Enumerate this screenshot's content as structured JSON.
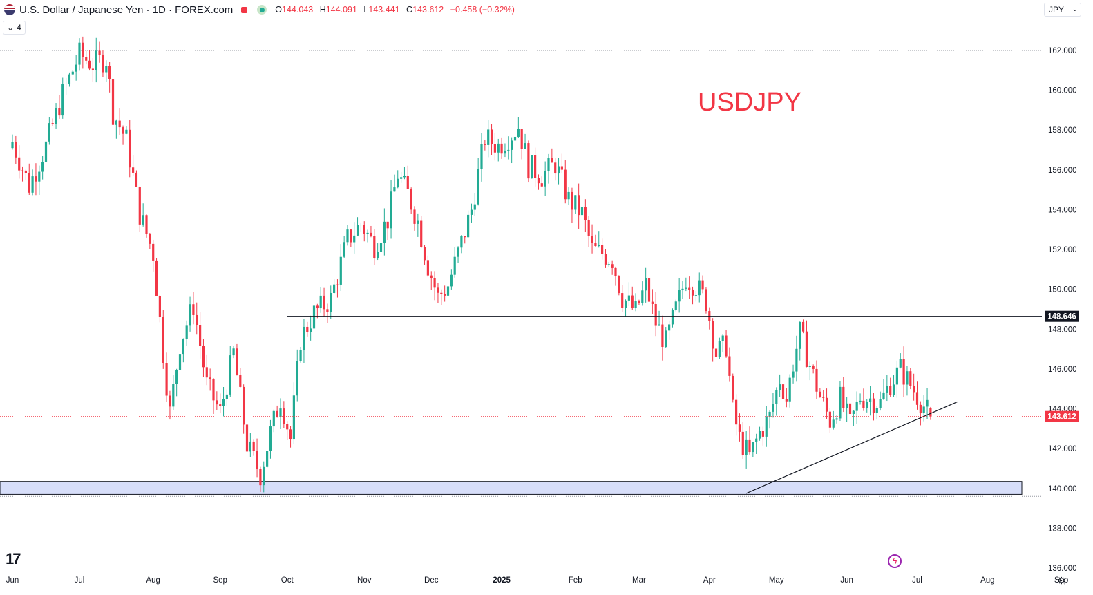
{
  "header": {
    "symbol_title": "U.S. Dollar / Japanese Yen · 1D · FOREX.com",
    "ohlc": [
      {
        "key": "O",
        "value": "144.043"
      },
      {
        "key": "H",
        "value": "144.091"
      },
      {
        "key": "L",
        "value": "143.441"
      },
      {
        "key": "C",
        "value": "143.612"
      },
      {
        "key": "",
        "value": "−0.458 (−0.32%)"
      }
    ],
    "indicator_count": "4",
    "currency": "JPY"
  },
  "colors": {
    "up": "#22ab94",
    "down": "#f23645",
    "annotation": "#f23645",
    "support_zone_fill": "#d7def9",
    "grid": "#e0e3eb"
  },
  "icons": [
    "us-flag-icon",
    "market-status-icon",
    "live-dot-icon",
    "chevron-down-icon",
    "tradingview-logo-icon",
    "flash-icon",
    "gear-icon"
  ],
  "chart_data": {
    "type": "candlestick",
    "timeframe": "1D",
    "annotation": "USDJPY",
    "y_ticks": [
      162,
      160,
      158,
      156,
      154,
      152,
      150,
      148,
      146,
      144,
      142,
      140,
      138,
      136
    ],
    "y_tick_labels": [
      "162.000",
      "160.000",
      "158.000",
      "156.000",
      "154.000",
      "152.000",
      "150.000",
      "148.000",
      "146.000",
      "144.000",
      "142.000",
      "140.000",
      "138.000",
      "136.000"
    ],
    "ylim": [
      135.8,
      164.5
    ],
    "x_tick_labels": [
      "Jun",
      "Jul",
      "Aug",
      "Sep",
      "Oct",
      "Nov",
      "Dec",
      "2025",
      "Feb",
      "Mar",
      "Apr",
      "May",
      "Jun",
      "Jul",
      "Aug",
      "Sep"
    ],
    "x_tick_day_index": [
      0,
      20,
      42,
      62,
      82,
      105,
      125,
      146,
      168,
      187,
      208,
      228,
      249,
      270,
      291,
      313
    ],
    "resistance_level": 148.646,
    "resistance_label": "148.646",
    "resistance_start_day": 82,
    "last_price": 143.612,
    "last_price_label": "143.612",
    "support_zone": {
      "from": 139.7,
      "to": 140.35
    },
    "trendline": [
      {
        "day": 219,
        "price": 139.75
      },
      {
        "day": 282,
        "price": 144.35
      }
    ],
    "last_candle_day": 274,
    "price_path": [
      {
        "day": 0,
        "close": 157.4
      },
      {
        "day": 5,
        "close": 155.2
      },
      {
        "day": 10,
        "close": 157.2
      },
      {
        "day": 15,
        "close": 159.8
      },
      {
        "day": 20,
        "close": 161.8
      },
      {
        "day": 24,
        "close": 161.3
      },
      {
        "day": 28,
        "close": 161.6
      },
      {
        "day": 30,
        "close": 158.9
      },
      {
        "day": 34,
        "close": 157.5
      },
      {
        "day": 38,
        "close": 153.8
      },
      {
        "day": 42,
        "close": 151.8
      },
      {
        "day": 45,
        "close": 146.8
      },
      {
        "day": 47,
        "close": 143.8
      },
      {
        "day": 50,
        "close": 147.3
      },
      {
        "day": 54,
        "close": 149.2
      },
      {
        "day": 58,
        "close": 145.2
      },
      {
        "day": 62,
        "close": 143.8
      },
      {
        "day": 66,
        "close": 146.8
      },
      {
        "day": 70,
        "close": 142.2
      },
      {
        "day": 74,
        "close": 140.7
      },
      {
        "day": 77,
        "close": 142.8
      },
      {
        "day": 80,
        "close": 144.5
      },
      {
        "day": 83,
        "close": 142.5
      },
      {
        "day": 86,
        "close": 147.5
      },
      {
        "day": 90,
        "close": 148.8
      },
      {
        "day": 95,
        "close": 149.5
      },
      {
        "day": 100,
        "close": 152.5
      },
      {
        "day": 104,
        "close": 153.3
      },
      {
        "day": 108,
        "close": 152.2
      },
      {
        "day": 112,
        "close": 153.5
      },
      {
        "day": 115,
        "close": 155.8
      },
      {
        "day": 118,
        "close": 154.8
      },
      {
        "day": 121,
        "close": 153.4
      },
      {
        "day": 124,
        "close": 151.2
      },
      {
        "day": 127,
        "close": 149.6
      },
      {
        "day": 130,
        "close": 150.2
      },
      {
        "day": 133,
        "close": 151.8
      },
      {
        "day": 137,
        "close": 154.0
      },
      {
        "day": 141,
        "close": 157.6
      },
      {
        "day": 145,
        "close": 157.2
      },
      {
        "day": 149,
        "close": 157.8
      },
      {
        "day": 151,
        "close": 158.2
      },
      {
        "day": 154,
        "close": 156.2
      },
      {
        "day": 158,
        "close": 155.7
      },
      {
        "day": 162,
        "close": 156.3
      },
      {
        "day": 166,
        "close": 154.5
      },
      {
        "day": 170,
        "close": 153.8
      },
      {
        "day": 173,
        "close": 152.0
      },
      {
        "day": 176,
        "close": 151.8
      },
      {
        "day": 179,
        "close": 151.5
      },
      {
        "day": 182,
        "close": 149.6
      },
      {
        "day": 186,
        "close": 148.9
      },
      {
        "day": 189,
        "close": 150.2
      },
      {
        "day": 192,
        "close": 148.3
      },
      {
        "day": 195,
        "close": 147.3
      },
      {
        "day": 198,
        "close": 149.0
      },
      {
        "day": 201,
        "close": 150.6
      },
      {
        "day": 204,
        "close": 150.2
      },
      {
        "day": 207,
        "close": 149.4
      },
      {
        "day": 210,
        "close": 146.8
      },
      {
        "day": 213,
        "close": 147.2
      },
      {
        "day": 215,
        "close": 143.9
      },
      {
        "day": 217,
        "close": 142.5
      },
      {
        "day": 220,
        "close": 141.6
      },
      {
        "day": 223,
        "close": 142.8
      },
      {
        "day": 226,
        "close": 143.6
      },
      {
        "day": 229,
        "close": 145.5
      },
      {
        "day": 231,
        "close": 144.5
      },
      {
        "day": 233,
        "close": 146.3
      },
      {
        "day": 235,
        "close": 147.8
      },
      {
        "day": 238,
        "close": 146.2
      },
      {
        "day": 241,
        "close": 144.6
      },
      {
        "day": 244,
        "close": 143.4
      },
      {
        "day": 247,
        "close": 144.5
      },
      {
        "day": 250,
        "close": 143.2
      },
      {
        "day": 253,
        "close": 144.6
      },
      {
        "day": 256,
        "close": 144.5
      },
      {
        "day": 259,
        "close": 144.3
      },
      {
        "day": 262,
        "close": 145.3
      },
      {
        "day": 265,
        "close": 146.0
      },
      {
        "day": 268,
        "close": 145.2
      },
      {
        "day": 271,
        "close": 144.4
      },
      {
        "day": 274,
        "close": 143.612
      }
    ]
  }
}
